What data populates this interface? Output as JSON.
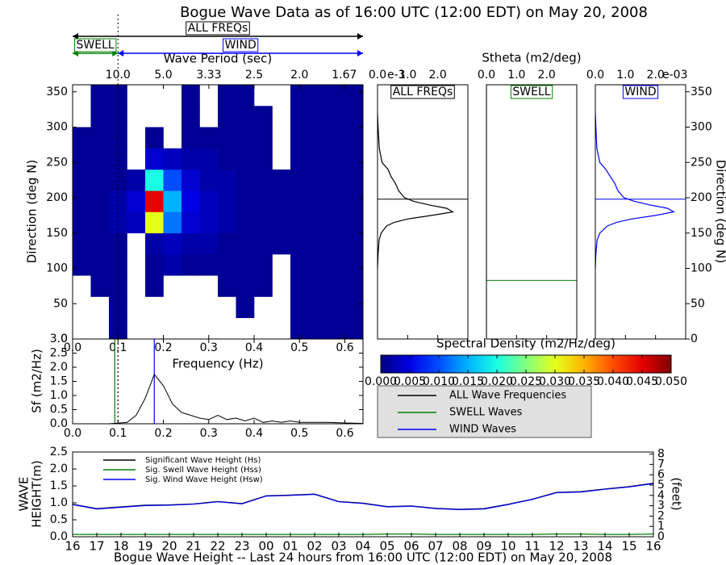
{
  "title": "Bogue Wave Data as of 16:00 UTC (12:00 EDT) on May 20, 2008",
  "chart_data": [
    {
      "type": "heatmap",
      "ylabel": "Direction (deg N)",
      "x2label": "Wave Period (sec)",
      "xlim": [
        0,
        0.64
      ],
      "ylim": [
        0,
        360
      ],
      "xticks": [
        {
          "value": 0,
          "label": "0.0"
        },
        0.1,
        0.2,
        0.3,
        0.4,
        0.5,
        0.6
      ],
      "yticks": [
        0,
        50,
        100,
        150,
        200,
        250,
        300,
        350
      ],
      "x2ticks": [
        {
          "value": 10,
          "label": "10.0"
        },
        {
          "value": 5,
          "label": "5.0"
        },
        3.33,
        2.5,
        {
          "value": 2,
          "label": "2.0"
        },
        1.67
      ],
      "xbins": [
        0,
        0.04,
        0.08,
        0.12,
        0.16,
        0.2,
        0.24,
        0.28,
        0.32,
        0.36,
        0.4,
        0.44,
        0.48,
        0.52,
        0.56,
        0.6,
        0.64
      ],
      "ybins": [
        0,
        30,
        60,
        90,
        120,
        150,
        180,
        210,
        240,
        270,
        300,
        330,
        360
      ],
      "values": [
        [
          null,
          null,
          0.001,
          null,
          null,
          null,
          null,
          null,
          null,
          null,
          null,
          null,
          0.001,
          0.001,
          0.001,
          0.001
        ],
        [
          null,
          null,
          0.001,
          null,
          null,
          null,
          null,
          null,
          null,
          0.001,
          null,
          null,
          0.001,
          0.001,
          0.001,
          0.001
        ],
        [
          null,
          0.001,
          0.001,
          null,
          0.001,
          null,
          null,
          null,
          0.001,
          0.001,
          0.001,
          null,
          0.001,
          0.001,
          0.001,
          0.001
        ],
        [
          0.001,
          0.001,
          0.001,
          null,
          0.001,
          0.002,
          0.001,
          0.001,
          0.001,
          0.001,
          0.001,
          null,
          0.001,
          0.001,
          0.001,
          0.001
        ],
        [
          0.001,
          0.001,
          0.001,
          null,
          0.002,
          0.003,
          0.002,
          0.002,
          0.001,
          0.001,
          0.001,
          0.001,
          0.001,
          0.001,
          0.001,
          0.001
        ],
        [
          0.001,
          0.001,
          0.002,
          0.003,
          0.03,
          0.012,
          0.004,
          0.003,
          0.002,
          0.001,
          0.001,
          0.001,
          0.001,
          0.001,
          0.001,
          0.001
        ],
        [
          0.001,
          0.001,
          0.002,
          0.004,
          0.045,
          0.015,
          0.005,
          0.003,
          0.002,
          0.001,
          0.001,
          0.001,
          0.001,
          0.001,
          0.001,
          0.001
        ],
        [
          0.001,
          0.001,
          0.001,
          0.002,
          0.02,
          0.01,
          0.004,
          0.002,
          0.002,
          0.001,
          0.001,
          0.001,
          0.001,
          0.001,
          0.001,
          0.001
        ],
        [
          0.001,
          0.001,
          0.001,
          null,
          0.004,
          0.003,
          0.002,
          0.002,
          0.001,
          0.001,
          0.001,
          null,
          0.001,
          0.001,
          0.001,
          0.001
        ],
        [
          0.001,
          0.001,
          0.001,
          null,
          0.001,
          null,
          0.001,
          0.001,
          0.001,
          0.001,
          0.001,
          null,
          0.001,
          0.001,
          0.001,
          0.001
        ],
        [
          null,
          0.001,
          0.001,
          null,
          null,
          null,
          0.001,
          null,
          0.001,
          0.001,
          0.001,
          null,
          0.001,
          0.001,
          0.001,
          0.001
        ],
        [
          null,
          0.001,
          0.001,
          null,
          null,
          null,
          0.001,
          null,
          0.001,
          0.001,
          null,
          null,
          0.001,
          0.001,
          0.001,
          0.001
        ]
      ],
      "markers": [
        {
          "value": 0.1,
          "color": "#000000",
          "style": "dotted"
        }
      ],
      "bands": [
        {
          "name": "ALL FREQs",
          "range": [
            0,
            0.64
          ],
          "color": "#000000"
        },
        {
          "name": "SWELL",
          "range": [
            0,
            0.1
          ],
          "color": "#008000"
        },
        {
          "name": "WIND",
          "range": [
            0.1,
            0.64
          ],
          "color": "#0000ff"
        }
      ],
      "colorbar": {
        "label": "Spectral Density (m2/Hz/deg)",
        "clim": [
          0,
          0.05
        ],
        "ticks": [
          {
            "value": 0,
            "label": "0.000"
          },
          0.005,
          {
            "value": 0.01,
            "label": "0.010"
          },
          0.015,
          {
            "value": 0.02,
            "label": "0.020"
          },
          0.025,
          {
            "value": 0.03,
            "label": "0.030"
          },
          0.035,
          {
            "value": 0.04,
            "label": "0.040"
          },
          0.045,
          {
            "value": 0.05,
            "label": "0.050"
          }
        ]
      }
    },
    {
      "type": "line",
      "orientation": "horizontal",
      "title": "ALL FREQs",
      "color": "#000000",
      "xlim": [
        0,
        3
      ],
      "ylim": [
        0,
        360
      ],
      "xticks": [
        {
          "value": 0,
          "label": "0.0"
        },
        {
          "value": 1,
          "label": "1.0"
        },
        {
          "value": 2,
          "label": "2.0"
        }
      ],
      "offset_label": "e-3",
      "y": [
        100,
        120,
        140,
        150,
        160,
        165,
        170,
        175,
        180,
        185,
        190,
        195,
        200,
        210,
        220,
        230,
        240,
        250,
        270,
        300,
        320
      ],
      "values": [
        0,
        0.02,
        0.05,
        0.12,
        0.3,
        0.55,
        1.0,
        1.8,
        2.5,
        2.3,
        1.7,
        1.2,
        0.9,
        0.7,
        0.6,
        0.45,
        0.35,
        0.15,
        0.06,
        0.02,
        0
      ],
      "mean_direction": 198
    },
    {
      "type": "line",
      "orientation": "horizontal",
      "title": "SWELL",
      "color": "#008000",
      "xlabel": "Stheta (m2/deg)",
      "xlim": [
        0,
        3
      ],
      "ylim": [
        0,
        360
      ],
      "xticks": [
        {
          "value": 0,
          "label": "0.0"
        },
        {
          "value": 1,
          "label": "1.0"
        },
        {
          "value": 2,
          "label": "2.0"
        }
      ],
      "y": [
        0,
        360
      ],
      "values": [
        0,
        0
      ],
      "mean_direction": 83
    },
    {
      "type": "line",
      "orientation": "horizontal",
      "title": "WIND",
      "color": "#0000ff",
      "ylabel": "Direction (deg N)",
      "xlim": [
        0,
        3
      ],
      "ylim": [
        0,
        360
      ],
      "xticks": [
        {
          "value": 0,
          "label": "0.0"
        },
        {
          "value": 1,
          "label": "1.0"
        },
        {
          "value": 2,
          "label": "2.0"
        }
      ],
      "offset_label": "e-03",
      "yticks": [
        0,
        50,
        100,
        150,
        200,
        250,
        300,
        350
      ],
      "y": [
        100,
        120,
        140,
        150,
        160,
        165,
        170,
        175,
        180,
        185,
        190,
        195,
        200,
        210,
        220,
        230,
        240,
        250,
        270,
        300,
        320
      ],
      "values": [
        0,
        0.02,
        0.06,
        0.15,
        0.4,
        0.7,
        1.2,
        2.0,
        2.6,
        2.4,
        1.8,
        1.3,
        0.95,
        0.75,
        0.65,
        0.5,
        0.35,
        0.15,
        0.05,
        0.02,
        0
      ],
      "mean_direction": 198
    },
    {
      "type": "line",
      "xlabel": "Frequency (Hz)",
      "ylabel": "Sf (m2/Hz)",
      "xlim": [
        0,
        0.64
      ],
      "ylim": [
        0,
        3
      ],
      "xticks": [
        {
          "value": 0,
          "label": "0.0"
        },
        0.1,
        0.2,
        0.3,
        0.4,
        0.5,
        0.6
      ],
      "yticks": [
        {
          "value": 0,
          "label": "0.0"
        },
        0.5,
        {
          "value": 1,
          "label": "1.0"
        },
        1.5,
        {
          "value": 2,
          "label": "2.0"
        },
        2.5,
        {
          "value": 3,
          "label": "3.0"
        }
      ],
      "x": [
        0.02,
        0.04,
        0.06,
        0.08,
        0.1,
        0.12,
        0.14,
        0.16,
        0.18,
        0.2,
        0.22,
        0.24,
        0.26,
        0.28,
        0.3,
        0.32,
        0.34,
        0.36,
        0.38,
        0.4,
        0.42,
        0.44,
        0.46,
        0.48,
        0.5,
        0.52,
        0.54,
        0.56,
        0.58,
        0.6,
        0.62,
        0.64
      ],
      "series": [
        {
          "name": "ALL Wave Frequencies",
          "color": "#000000",
          "values": [
            0,
            0,
            0,
            0,
            0.02,
            0.05,
            0.3,
            0.9,
            1.75,
            1.35,
            0.7,
            0.4,
            0.3,
            0.2,
            0.15,
            0.3,
            0.15,
            0.2,
            0.1,
            0.2,
            0.05,
            0.1,
            0.05,
            0.1,
            0.05,
            0.05,
            0.05,
            0.05,
            0.04,
            0.03,
            0.02,
            0.01
          ]
        }
      ],
      "markers": [
        {
          "value": 0.1,
          "color": "#000000",
          "style": "dotted"
        },
        {
          "name": "SWELL Waves",
          "value": 0.093,
          "color": "#008000",
          "style": "solid"
        },
        {
          "name": "WIND Waves",
          "value": 0.18,
          "color": "#0000ff",
          "style": "solid"
        }
      ]
    },
    {
      "type": "line",
      "xlabel": "Bogue Wave Height -- Last 24 hours from 16:00 UTC (12:00 EDT) on May 20, 2008",
      "ylabel": [
        "WAVE",
        "HEIGHT(m)"
      ],
      "y2label": "(feet)",
      "legend": "upper left",
      "categories": [
        "16",
        "17",
        "18",
        "19",
        "20",
        "21",
        "22",
        "23",
        "00",
        "01",
        "02",
        "03",
        "04",
        "05",
        "06",
        "07",
        "08",
        "09",
        "10",
        "11",
        "12",
        "13",
        "14",
        "15",
        "16"
      ],
      "ylim": [
        0,
        2.5
      ],
      "yticks": [
        {
          "value": 0,
          "label": "0.0"
        },
        0.5,
        {
          "value": 1,
          "label": "1.0"
        },
        1.5,
        {
          "value": 2,
          "label": "2.0"
        },
        2.5
      ],
      "y2lim": [
        0,
        8.2
      ],
      "y2ticks": [
        0,
        1,
        2,
        3,
        4,
        5,
        6,
        7,
        8
      ],
      "series": [
        {
          "name": "Significant Wave Height (Hs)",
          "color": "#000000",
          "values": [
            0.96,
            0.83,
            0.88,
            0.93,
            0.94,
            0.97,
            1.04,
            0.98,
            1.21,
            1.23,
            1.26,
            1.04,
            0.99,
            0.89,
            0.91,
            0.84,
            0.81,
            0.83,
            0.96,
            1.11,
            1.31,
            1.33,
            1.41,
            1.48,
            1.58
          ]
        },
        {
          "name": "Sig. Swell Wave Height (Hss)",
          "color": "#008000",
          "values": [
            0.07,
            0.07,
            0.07,
            0.07,
            0.07,
            0.07,
            0.07,
            0.07,
            0.07,
            0.07,
            0.07,
            0.07,
            0.07,
            0.08,
            0.08,
            0.07,
            0.07,
            0.07,
            0.07,
            0.07,
            0.08,
            0.08,
            0.07,
            0.07,
            0.08
          ]
        },
        {
          "name": "Sig. Wind Wave Height (Hsw)",
          "color": "#0000ff",
          "values": [
            0.95,
            0.82,
            0.87,
            0.92,
            0.93,
            0.96,
            1.03,
            0.97,
            1.2,
            1.22,
            1.25,
            1.03,
            0.98,
            0.88,
            0.9,
            0.83,
            0.8,
            0.82,
            0.95,
            1.1,
            1.3,
            1.32,
            1.4,
            1.47,
            1.57
          ]
        }
      ]
    }
  ]
}
